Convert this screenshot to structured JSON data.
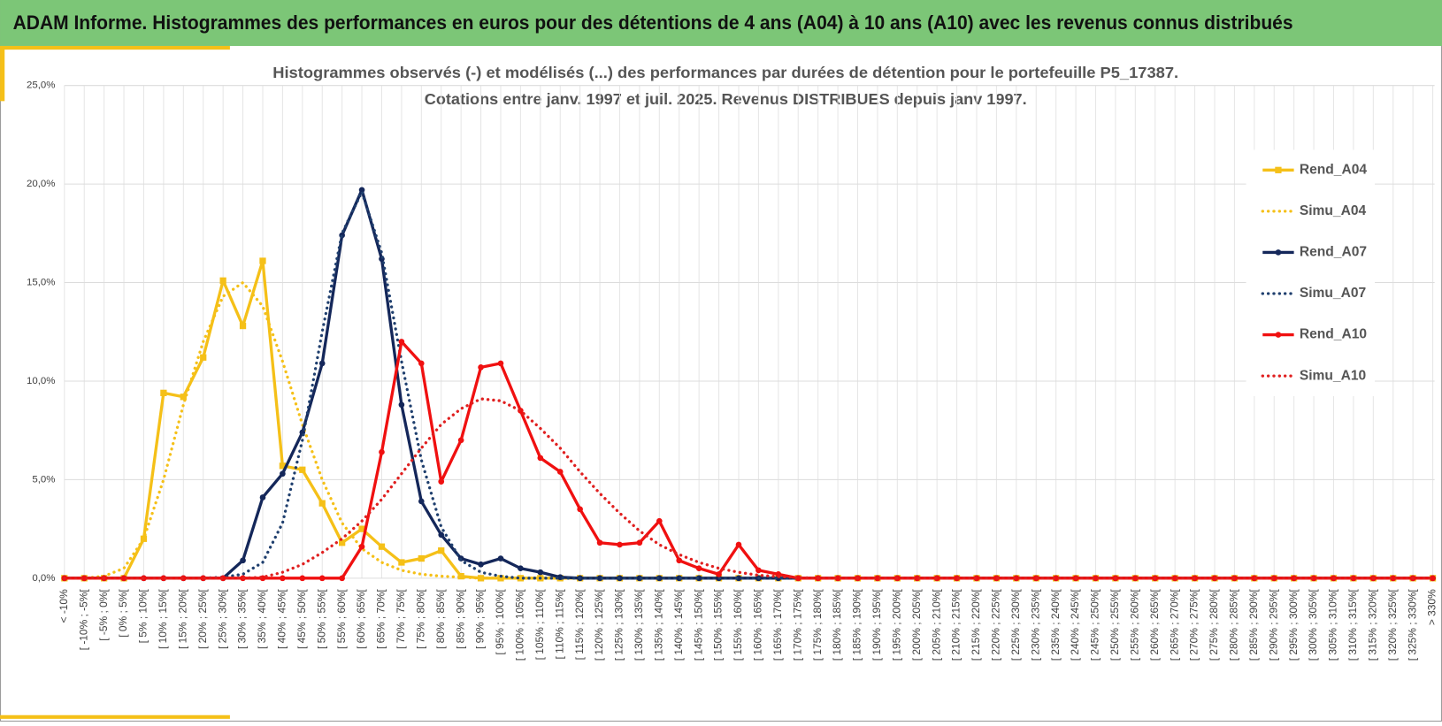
{
  "header": {
    "title": "ADAM Informe. Histogrammes des performances en euros pour des détentions de 4 ans (A04) à 10 ans (A10) avec les revenus connus distribués"
  },
  "chart_data": {
    "type": "line",
    "title": "Histogrammes observés (-) et modélisés (...) des performances par durées de détention pour le portefeuille P5_17387.",
    "subtitle": "Cotations entre janv. 1997 et juil. 2025. Revenus DISTRIBUES depuis janv 1997.",
    "categories": [
      "< -10%",
      "[ -10% ; -5%[",
      "[ -5% ; 0%[",
      "[ 0% ; 5%[",
      "[ 5% ; 10%[",
      "[ 10% ; 15%[",
      "[ 15% ; 20%[",
      "[ 20% ; 25%[",
      "[ 25% ; 30%[",
      "[ 30% ; 35%[",
      "[ 35% ; 40%[",
      "[ 40% ; 45%[",
      "[ 45% ; 50%[",
      "[ 50% ; 55%[",
      "[ 55% ; 60%[",
      "[ 60% ; 65%[",
      "[ 65% ; 70%[",
      "[ 70% ; 75%[",
      "[ 75% ; 80%[",
      "[ 80% ; 85%[",
      "[ 85% ; 90%[",
      "[ 90% ; 95%[",
      "[ 95% ; 100%[",
      "[ 100% ; 105%[",
      "[ 105% ; 110%[",
      "[ 110% ; 115%[",
      "[ 115% ; 120%[",
      "[ 120% ; 125%[",
      "[ 125% ; 130%[",
      "[ 130% ; 135%[",
      "[ 135% ; 140%[",
      "[ 140% ; 145%[",
      "[ 145% ; 150%[",
      "[ 150% ; 155%[",
      "[ 155% ; 160%[",
      "[ 160% ; 165%[",
      "[ 165% ; 170%[",
      "[ 170% ; 175%[",
      "[ 175% ; 180%[",
      "[ 180% ; 185%[",
      "[ 185% ; 190%[",
      "[ 190% ; 195%[",
      "[ 195% ; 200%[",
      "[ 200% ; 205%[",
      "[ 205% ; 210%[",
      "[ 210% ; 215%[",
      "[ 215% ; 220%[",
      "[ 220% ; 225%[",
      "[ 225% ; 230%[",
      "[ 230% ; 235%[",
      "[ 235% ; 240%[",
      "[ 240% ; 245%[",
      "[ 245% ; 250%[",
      "[ 250% ; 255%[",
      "[ 255% ; 260%[",
      "[ 260% ; 265%[",
      "[ 265% ; 270%[",
      "[ 270% ; 275%[",
      "[ 275% ; 280%[",
      "[ 280% ; 285%[",
      "[ 285% ; 290%[",
      "[ 290% ; 295%[",
      "[ 295% ; 300%[",
      "[ 300% ; 305%[",
      "[ 305% ; 310%[",
      "[ 310% ; 315%[",
      "[ 315% ; 320%[",
      "[ 320% ; 325%[",
      "[ 325% ; 330%[",
      "> 330%"
    ],
    "series": [
      {
        "name": "Rend_A04",
        "color": "#f5c018",
        "line_style": "solid",
        "marker": "square",
        "values": [
          0,
          0,
          0,
          0,
          2.0,
          9.4,
          9.2,
          11.2,
          15.1,
          12.8,
          16.1,
          5.7,
          5.5,
          3.8,
          1.8,
          2.5,
          1.6,
          0.8,
          1.0,
          1.4,
          0.1,
          0,
          0,
          0,
          0,
          0,
          0,
          0,
          0,
          0,
          0,
          0,
          0,
          0,
          0,
          0,
          0,
          0,
          0,
          0,
          0,
          0,
          0,
          0,
          0,
          0,
          0,
          0,
          0,
          0,
          0,
          0,
          0,
          0,
          0,
          0,
          0,
          0,
          0,
          0,
          0,
          0,
          0,
          0,
          0,
          0,
          0,
          0,
          0,
          0
        ]
      },
      {
        "name": "Simu_A04",
        "color": "#f5c018",
        "line_style": "dotted",
        "values": [
          0,
          0,
          0.1,
          0.5,
          2.0,
          5.0,
          8.8,
          12.0,
          14.3,
          15.0,
          13.8,
          11.0,
          7.8,
          5.0,
          2.8,
          1.5,
          0.8,
          0.4,
          0.2,
          0.1,
          0.05,
          0,
          0,
          0,
          0,
          0,
          0,
          0,
          0,
          0,
          0,
          0,
          0,
          0,
          0,
          0,
          0,
          0,
          0,
          0,
          0,
          0,
          0,
          0,
          0,
          0,
          0,
          0,
          0,
          0,
          0,
          0,
          0,
          0,
          0,
          0,
          0,
          0,
          0,
          0,
          0,
          0,
          0,
          0,
          0,
          0,
          0,
          0,
          0,
          0
        ]
      },
      {
        "name": "Rend_A07",
        "color": "#14275a",
        "line_style": "solid",
        "marker": "circle",
        "values": [
          0,
          0,
          0,
          0,
          0,
          0,
          0,
          0,
          0,
          0.9,
          4.1,
          5.3,
          7.4,
          10.9,
          17.4,
          19.7,
          16.2,
          8.8,
          3.9,
          2.2,
          1.0,
          0.7,
          1.0,
          0.5,
          0.3,
          0.05,
          0,
          0,
          0,
          0,
          0,
          0,
          0,
          0,
          0,
          0,
          0,
          0,
          0,
          0,
          0,
          0,
          0,
          0,
          0,
          0,
          0,
          0,
          0,
          0,
          0,
          0,
          0,
          0,
          0,
          0,
          0,
          0,
          0,
          0,
          0,
          0,
          0,
          0,
          0,
          0,
          0,
          0,
          0,
          0
        ]
      },
      {
        "name": "Simu_A07",
        "color": "#1f3f6e",
        "line_style": "dotted",
        "values": [
          0,
          0,
          0,
          0,
          0,
          0,
          0,
          0,
          0.05,
          0.2,
          0.8,
          2.8,
          7.0,
          12.5,
          17.5,
          19.6,
          16.5,
          11.0,
          6.0,
          2.6,
          0.9,
          0.3,
          0.1,
          0,
          0,
          0,
          0,
          0,
          0,
          0,
          0,
          0,
          0,
          0,
          0,
          0,
          0,
          0,
          0,
          0,
          0,
          0,
          0,
          0,
          0,
          0,
          0,
          0,
          0,
          0,
          0,
          0,
          0,
          0,
          0,
          0,
          0,
          0,
          0,
          0,
          0,
          0,
          0,
          0,
          0,
          0,
          0,
          0,
          0,
          0
        ]
      },
      {
        "name": "Rend_A10",
        "color": "#f01010",
        "line_style": "solid",
        "marker": "circle",
        "values": [
          0,
          0,
          0,
          0,
          0,
          0,
          0,
          0,
          0,
          0,
          0,
          0,
          0,
          0,
          0,
          1.6,
          6.4,
          12.0,
          10.9,
          4.9,
          7.0,
          10.7,
          10.9,
          8.5,
          6.1,
          5.4,
          3.5,
          1.8,
          1.7,
          1.8,
          2.9,
          0.9,
          0.5,
          0.2,
          1.7,
          0.4,
          0.2,
          0,
          0,
          0,
          0,
          0,
          0,
          0,
          0,
          0,
          0,
          0,
          0,
          0,
          0,
          0,
          0,
          0,
          0,
          0,
          0,
          0,
          0,
          0,
          0,
          0,
          0,
          0,
          0,
          0,
          0,
          0,
          0,
          0
        ]
      },
      {
        "name": "Simu_A10",
        "color": "#e02020",
        "line_style": "dotted",
        "values": [
          0,
          0,
          0,
          0,
          0,
          0,
          0,
          0,
          0,
          0,
          0.05,
          0.3,
          0.7,
          1.3,
          2.0,
          2.9,
          4.0,
          5.3,
          6.6,
          7.8,
          8.6,
          9.1,
          9.0,
          8.5,
          7.6,
          6.6,
          5.4,
          4.3,
          3.3,
          2.4,
          1.7,
          1.2,
          0.8,
          0.5,
          0.3,
          0.15,
          0.08,
          0.03,
          0,
          0,
          0,
          0,
          0,
          0,
          0,
          0,
          0,
          0,
          0,
          0,
          0,
          0,
          0,
          0,
          0,
          0,
          0,
          0,
          0,
          0,
          0,
          0,
          0,
          0,
          0,
          0,
          0,
          0,
          0,
          0
        ]
      }
    ],
    "ylim": [
      0,
      25
    ],
    "yticks": [
      {
        "value": 0,
        "label": "0,0%"
      },
      {
        "value": 5,
        "label": "5,0%"
      },
      {
        "value": 10,
        "label": "10,0%"
      },
      {
        "value": 15,
        "label": "15,0%"
      },
      {
        "value": 20,
        "label": "20,0%"
      },
      {
        "value": 25,
        "label": "25,0%"
      }
    ],
    "grid": true,
    "legend": "right"
  }
}
